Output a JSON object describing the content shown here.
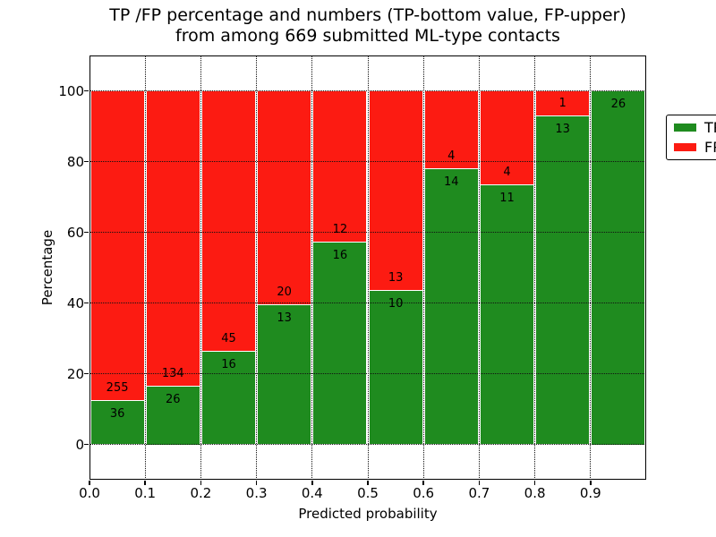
{
  "figure": {
    "title_line1": "TP /FP percentage and numbers (TP-bottom value, FP-upper)",
    "title_line2": "from among 669 submitted ML-type contacts"
  },
  "legend": {
    "position": "upper right",
    "items": [
      {
        "label": "TP",
        "color": "#1f8b1f"
      },
      {
        "label": "FP",
        "color": "#fc1b12"
      }
    ]
  },
  "chart_data": {
    "type": "bar",
    "stacked": true,
    "title": "TP /FP percentage and numbers (TP-bottom value, FP-upper) from among 669 submitted ML-type contacts",
    "xlabel": "Predicted probability",
    "ylabel": "Percentage",
    "xlim": [
      0.0,
      1.0
    ],
    "ylim": [
      -10,
      110
    ],
    "grid": true,
    "total_contacts": 669,
    "bin_width": 0.1,
    "bin_starts": [
      0.0,
      0.1,
      0.2,
      0.3,
      0.4,
      0.5,
      0.6,
      0.7,
      0.8,
      0.9
    ],
    "x_tick_values": [
      0.0,
      0.1,
      0.2,
      0.3,
      0.4,
      0.5,
      0.6,
      0.7,
      0.8,
      0.9
    ],
    "x_tick_labels": [
      "0.0",
      "0.1",
      "0.2",
      "0.3",
      "0.4",
      "0.5",
      "0.6",
      "0.7",
      "0.8",
      "0.9"
    ],
    "y_tick_values": [
      0,
      20,
      40,
      60,
      80,
      100
    ],
    "y_tick_labels": [
      "0",
      "20",
      "40",
      "60",
      "80",
      "100"
    ],
    "series": [
      {
        "name": "TP",
        "color": "#1f8b1f",
        "counts": [
          36,
          26,
          16,
          13,
          16,
          10,
          14,
          11,
          13,
          26
        ]
      },
      {
        "name": "FP",
        "color": "#fc1b12",
        "counts": [
          255,
          134,
          45,
          20,
          12,
          13,
          4,
          4,
          1,
          0
        ]
      }
    ],
    "tp_percent_of_bin": [
      12.4,
      16.3,
      26.2,
      39.4,
      57.1,
      43.5,
      77.8,
      73.3,
      92.9,
      100.0
    ],
    "bar_value_labels": {
      "tp": [
        "36",
        "26",
        "16",
        "13",
        "16",
        "10",
        "14",
        "11",
        "13",
        "26"
      ],
      "fp": [
        "255",
        "134",
        "45",
        "20",
        "12",
        "13",
        "4",
        "4",
        "1",
        ""
      ]
    }
  }
}
